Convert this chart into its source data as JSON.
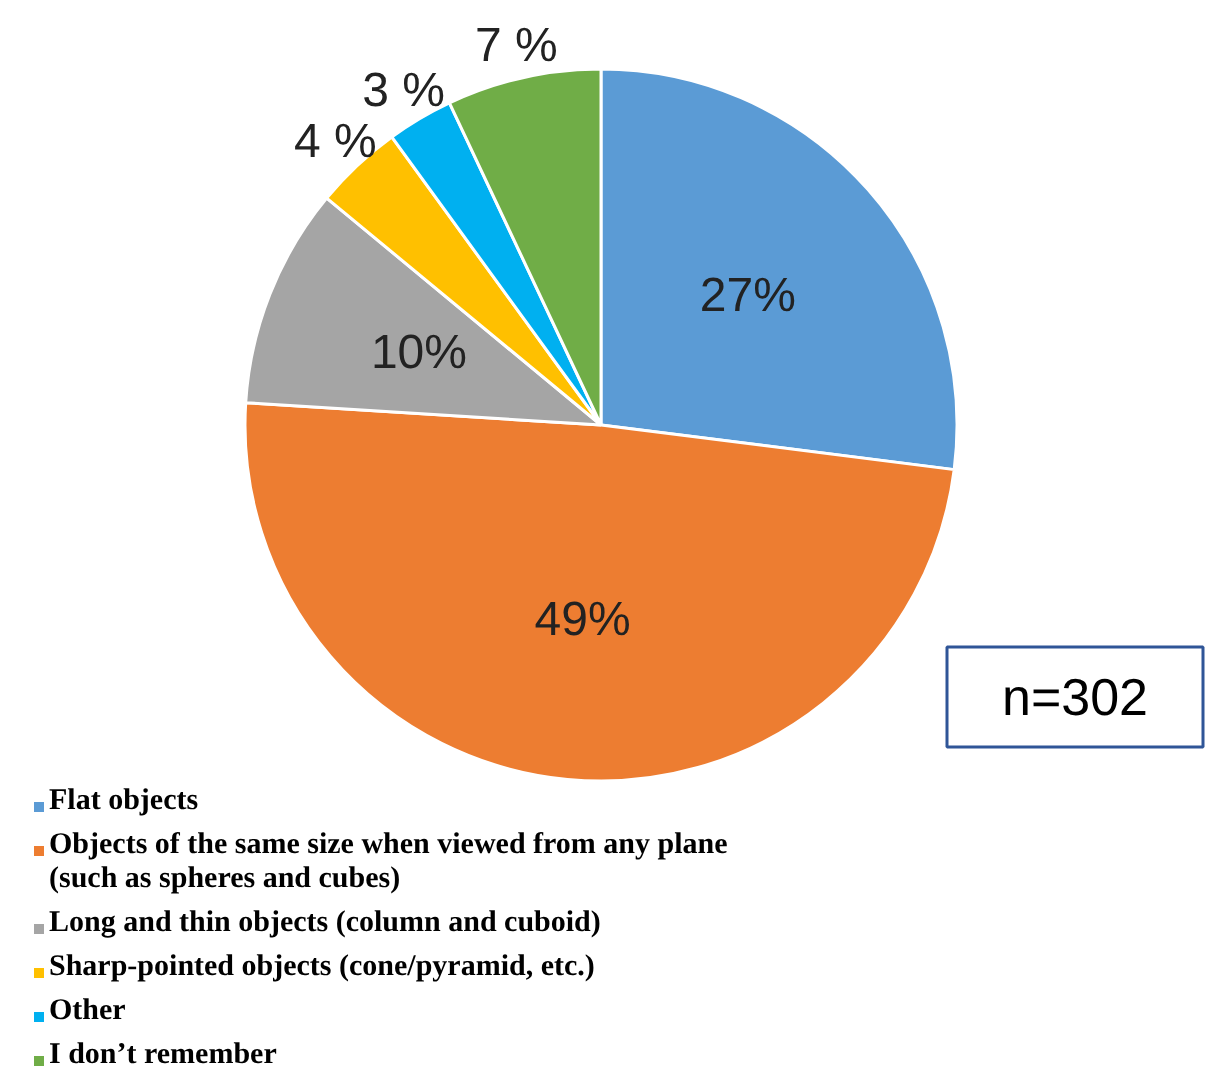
{
  "chart_data": {
    "type": "pie",
    "categories": [
      "Flat objects",
      "Objects of the same size when viewed from any plane (such as spheres and cubes)",
      "Long and thin objects (column and cuboid)",
      "Sharp-pointed objects (cone/pyramid, etc.)",
      "Other",
      "I don’t remember"
    ],
    "values": [
      27,
      49,
      10,
      4,
      3,
      7
    ],
    "colors": [
      "#5b9bd5",
      "#ed7d31",
      "#a5a5a5",
      "#ffc000",
      "#00b0f0",
      "#70ad47"
    ],
    "value_labels": [
      "27%",
      "49%",
      "10%",
      "4 %",
      "3 %",
      "7 %"
    ],
    "annotations": [
      "n=302"
    ],
    "legend": "bottom"
  }
}
